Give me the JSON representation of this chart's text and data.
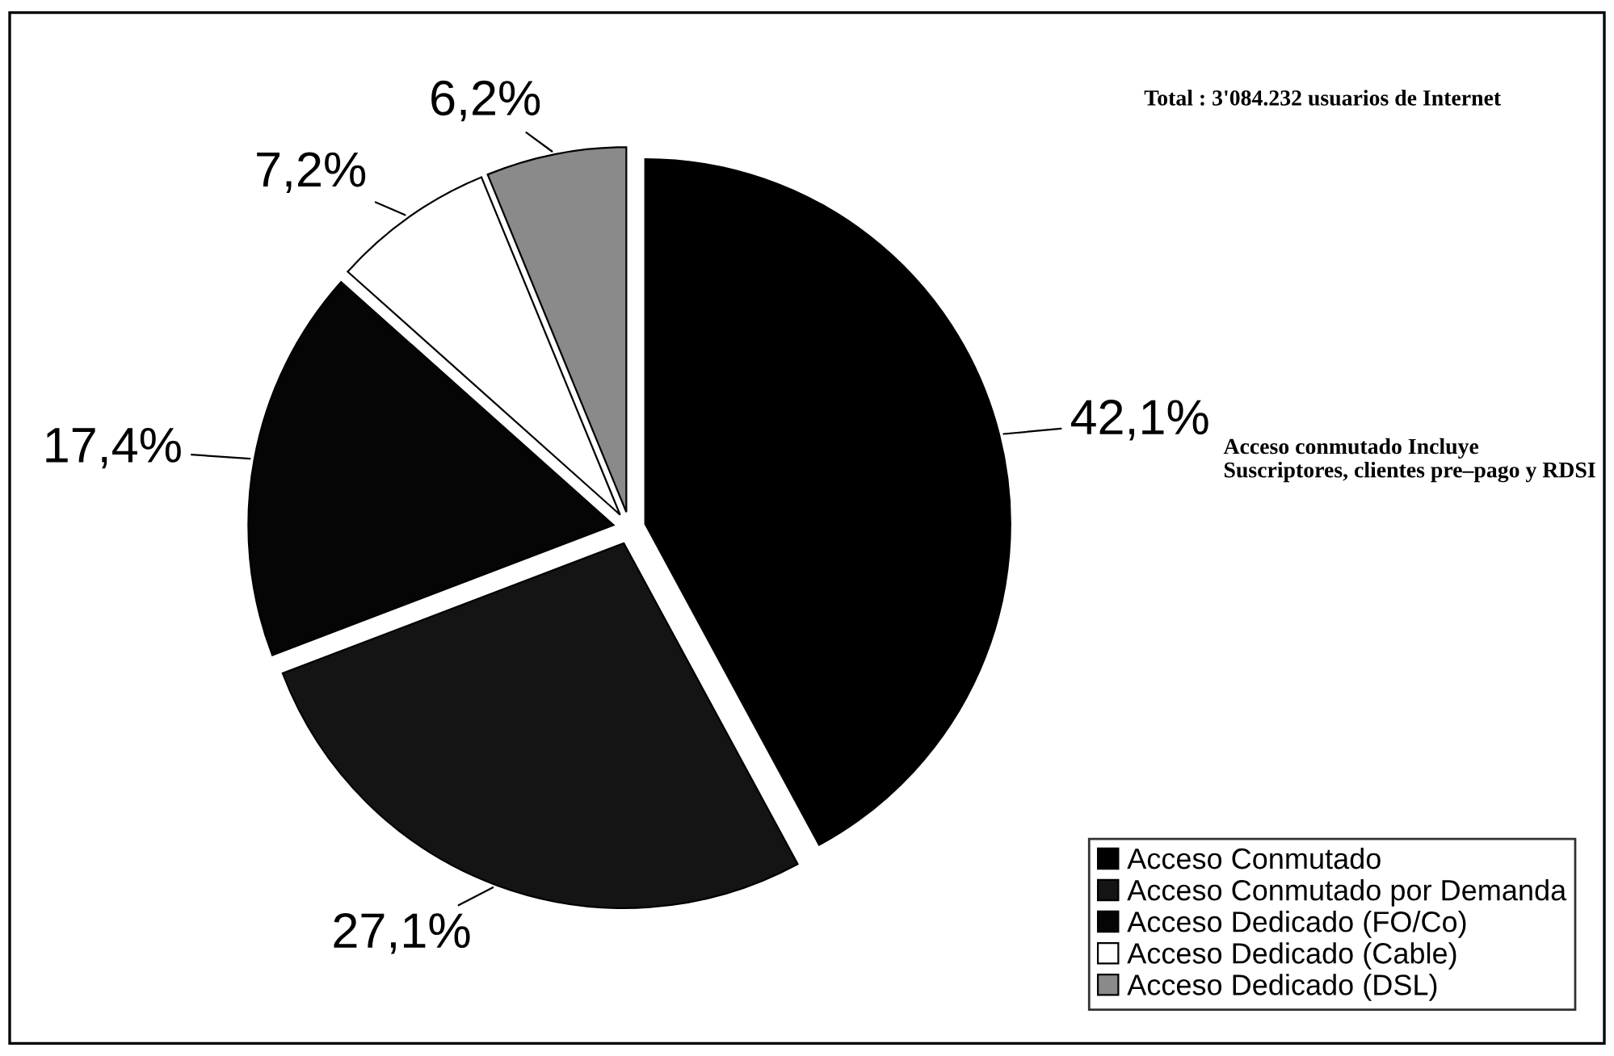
{
  "chart_data": {
    "type": "pie",
    "categories": [
      "Acceso Conmutado",
      "Acceso Conmutado por Demanda",
      "Acceso Dedicado (FO/Co)",
      "Acceso Dedicado (Cable)",
      "Acceso Dedicado (DSL)"
    ],
    "values": [
      42.1,
      27.1,
      17.4,
      7.2,
      6.2
    ],
    "colors": [
      "#000000",
      "#141414",
      "#050505",
      "#ffffff",
      "#8a8a8a"
    ],
    "value_labels": [
      "42,1%",
      "27,1%",
      "17,4%",
      "7,2%",
      "6,2%"
    ],
    "annotations": [
      "Total : 3'084.232 usuarios de Internet",
      "Acceso conmutado Incluye\nSuscriptores, clientes pre–pago y RDSI"
    ],
    "legend": "bottom right"
  }
}
